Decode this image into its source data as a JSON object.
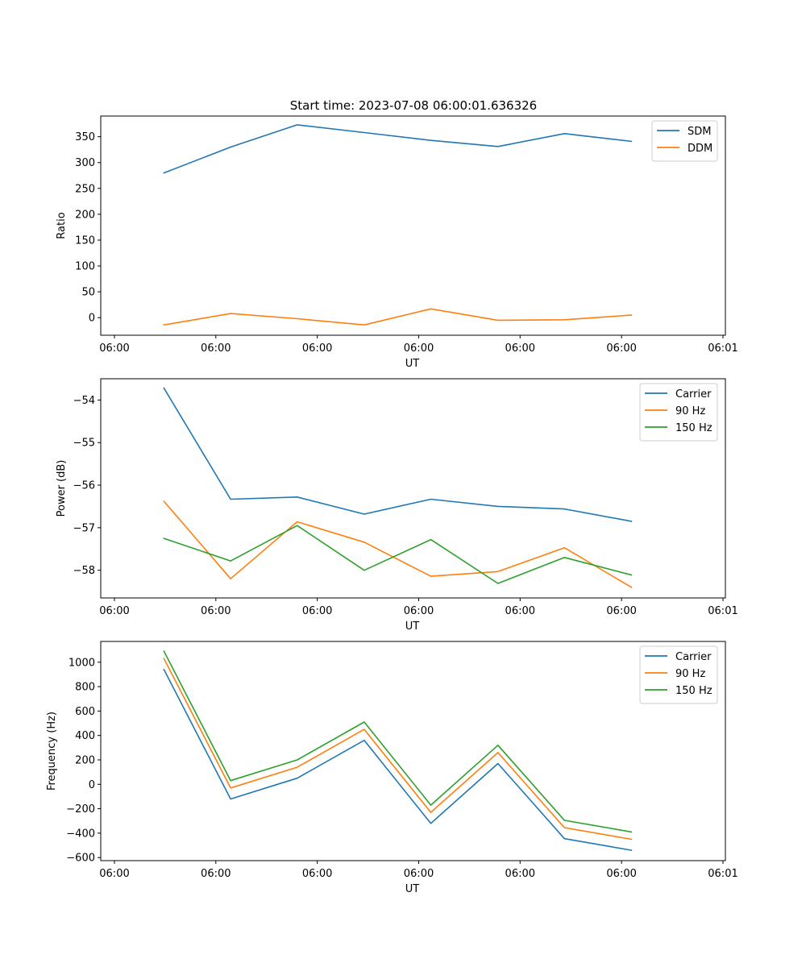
{
  "colors": {
    "c1": "#1f77b4",
    "c2": "#ff7f0e",
    "c3": "#2ca02c"
  },
  "chart_data": [
    {
      "type": "line",
      "title": "Start time: 2023-07-08 06:00:01.636326",
      "xlabel": "UT",
      "ylabel": "Ratio",
      "xlim": [
        0,
        1
      ],
      "ylim": [
        -34,
        390
      ],
      "yticks": [
        0,
        50,
        100,
        150,
        200,
        250,
        300,
        350
      ],
      "xticks": [
        0,
        0.1666,
        0.3333,
        0.5,
        0.6666,
        0.8333,
        1.0
      ],
      "xtick_labels": [
        "06:00",
        "06:00",
        "06:00",
        "06:00",
        "06:00",
        "06:00",
        "06:01"
      ],
      "x": [
        0.0813,
        0.1909,
        0.3003,
        0.4105,
        0.5199,
        0.6302,
        0.7395,
        0.8496
      ],
      "legend_loc": "upper right",
      "series": [
        {
          "name": "SDM",
          "color": "#1f77b4",
          "values": [
            280,
            330,
            373,
            358,
            343,
            331,
            356,
            341
          ]
        },
        {
          "name": "DDM",
          "color": "#ff7f0e",
          "values": [
            -14,
            8,
            -2,
            -14,
            17,
            -5,
            -4,
            5
          ]
        }
      ]
    },
    {
      "type": "line",
      "xlabel": "UT",
      "ylabel": "Power (dB)",
      "xlim": [
        0,
        1
      ],
      "ylim": [
        -58.65,
        -53.5
      ],
      "yticks": [
        -58,
        -57,
        -56,
        -55,
        -54
      ],
      "ytick_labels": [
        "−58",
        "−57",
        "−56",
        "−55",
        "−54"
      ],
      "xticks": [
        0,
        0.1666,
        0.3333,
        0.5,
        0.6666,
        0.8333,
        1.0
      ],
      "xtick_labels": [
        "06:00",
        "06:00",
        "06:00",
        "06:00",
        "06:00",
        "06:00",
        "06:01"
      ],
      "x": [
        0.0813,
        0.1909,
        0.3003,
        0.4105,
        0.5199,
        0.6302,
        0.7395,
        0.8496
      ],
      "legend_loc": "upper right",
      "series": [
        {
          "name": "Carrier",
          "color": "#1f77b4",
          "values": [
            -53.72,
            -56.33,
            -56.28,
            -56.68,
            -56.33,
            -56.5,
            -56.56,
            -56.85
          ]
        },
        {
          "name": "90 Hz",
          "color": "#ff7f0e",
          "values": [
            -56.38,
            -58.2,
            -56.86,
            -57.34,
            -58.14,
            -58.03,
            -57.47,
            -58.4
          ]
        },
        {
          "name": "150 Hz",
          "color": "#2ca02c",
          "values": [
            -57.25,
            -57.78,
            -56.95,
            -58.0,
            -57.28,
            -58.31,
            -57.7,
            -58.11
          ]
        }
      ]
    },
    {
      "type": "line",
      "xlabel": "UT",
      "ylabel": "Frequency (Hz)",
      "xlim": [
        0,
        1
      ],
      "ylim": [
        -625,
        1170
      ],
      "yticks": [
        -600,
        -400,
        -200,
        0,
        200,
        400,
        600,
        800,
        1000
      ],
      "ytick_labels": [
        "−600",
        "−400",
        "−200",
        "0",
        "200",
        "400",
        "600",
        "800",
        "1000"
      ],
      "xticks": [
        0,
        0.1666,
        0.3333,
        0.5,
        0.6666,
        0.8333,
        1.0
      ],
      "xtick_labels": [
        "06:00",
        "06:00",
        "06:00",
        "06:00",
        "06:00",
        "06:00",
        "06:01"
      ],
      "x": [
        0.0813,
        0.1909,
        0.3003,
        0.4105,
        0.5199,
        0.6302,
        0.7395,
        0.8496
      ],
      "legend_loc": "upper right",
      "series": [
        {
          "name": "Carrier",
          "color": "#1f77b4",
          "values": [
            940,
            -120,
            50,
            360,
            -320,
            170,
            -445,
            -540
          ]
        },
        {
          "name": "90 Hz",
          "color": "#ff7f0e",
          "values": [
            1030,
            -30,
            140,
            450,
            -230,
            260,
            -355,
            -450
          ]
        },
        {
          "name": "150 Hz",
          "color": "#2ca02c",
          "values": [
            1090,
            30,
            200,
            510,
            -170,
            320,
            -295,
            -390
          ]
        }
      ]
    }
  ]
}
